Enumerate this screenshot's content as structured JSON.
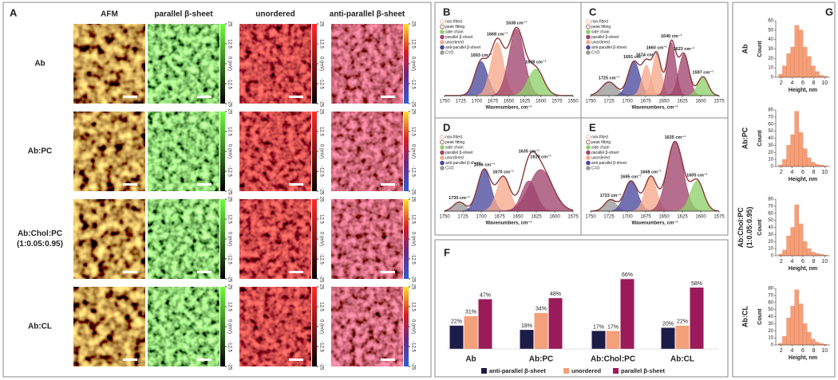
{
  "panel_a": {
    "label": "A",
    "columns": [
      "AFM",
      "parallel β-sheet",
      "unordered",
      "anti-parallel β-sheet"
    ],
    "rows": [
      [
        "Ab"
      ],
      [
        "Ab:PC"
      ],
      [
        "Ab:Chol:PC",
        "(1:0.05:0.95)"
      ],
      [
        "Ab:CL"
      ]
    ],
    "colorbar": {
      "lim": [
        -25,
        25
      ],
      "ticks": [
        25,
        12.5,
        {
          "value": 0,
          "label": "0 (mV)"
        },
        -12.5,
        -25
      ]
    }
  },
  "spectrum_legend": [
    {
      "label": "non-fitted",
      "color": "#f4a582"
    },
    {
      "label": "peak fitting",
      "color": "#8b3a3a"
    },
    {
      "label": "side chain",
      "color": "#8fd16a"
    },
    {
      "label": "parallel β-sheet",
      "color": "#a0456e"
    },
    {
      "label": "unordered",
      "color": "#f6a98a"
    },
    {
      "label": "anti-parallel β-sheet",
      "color": "#4a4a9e"
    },
    {
      "label": "C=O",
      "color": "#9a9a9a"
    }
  ],
  "spectrum_xlabel": "Wavenumbers, cm⁻¹",
  "chart_data": [
    {
      "type": "spectrum",
      "panel_label": "B",
      "xlim": [
        1750,
        1550
      ],
      "xticks": [
        1750,
        1725,
        1700,
        1675,
        1650,
        1625,
        1600,
        1575,
        1550
      ],
      "ylim": [
        0,
        100
      ],
      "peaks": [
        {
          "x": 1693,
          "height": 45,
          "width": 10,
          "color": "#4a4a9e",
          "label": "1693 cm⁻¹"
        },
        {
          "x": 1668,
          "height": 70,
          "width": 10,
          "color": "#f6a98a",
          "label": "1668 cm⁻¹"
        },
        {
          "x": 1638,
          "height": 88,
          "width": 12,
          "color": "#a0456e",
          "label": "1638 cm⁻¹"
        },
        {
          "x": 1608,
          "height": 35,
          "width": 12,
          "color": "#8fd16a",
          "label": "1608 cm⁻¹"
        }
      ]
    },
    {
      "type": "spectrum",
      "panel_label": "C",
      "xlim": [
        1750,
        1575
      ],
      "xticks": [
        1750,
        1725,
        1700,
        1675,
        1650,
        1625,
        1600,
        1575
      ],
      "ylim": [
        0,
        100
      ],
      "peaks": [
        {
          "x": 1725,
          "height": 18,
          "width": 10,
          "color": "#9a9a9a",
          "label": "1725 cm⁻¹"
        },
        {
          "x": 1691,
          "height": 45,
          "width": 8,
          "color": "#4a4a9e",
          "label": "1691 cm⁻¹"
        },
        {
          "x": 1674,
          "height": 40,
          "width": 6,
          "color": "#f6a98a",
          "label": "1674 cm⁻¹"
        },
        {
          "x": 1660,
          "height": 55,
          "width": 6,
          "color": "#f6a98a",
          "label": "1660 cm⁻¹"
        },
        {
          "x": 1640,
          "height": 70,
          "width": 6,
          "color": "#a0456e",
          "label": "1640 cm⁻¹"
        },
        {
          "x": 1623,
          "height": 55,
          "width": 7,
          "color": "#a0456e",
          "label": "1623 cm⁻¹"
        },
        {
          "x": 1597,
          "height": 25,
          "width": 7,
          "color": "#8fd16a",
          "label": "1597 cm⁻¹"
        }
      ]
    },
    {
      "type": "spectrum",
      "panel_label": "D",
      "xlim": [
        1750,
        1575
      ],
      "xticks": [
        1750,
        1725,
        1700,
        1675,
        1650,
        1625,
        1600,
        1575
      ],
      "ylim": [
        0,
        100
      ],
      "peaks": [
        {
          "x": 1730,
          "height": 12,
          "width": 8,
          "color": "#9a9a9a",
          "label": "1730 cm⁻¹"
        },
        {
          "x": 1696,
          "height": 55,
          "width": 9,
          "color": "#4a4a9e",
          "label": "1696 cm⁻¹"
        },
        {
          "x": 1670,
          "height": 45,
          "width": 9,
          "color": "#f6a98a",
          "label": "1670 cm⁻¹"
        },
        {
          "x": 1635,
          "height": 40,
          "width": 10,
          "color": "#a0456e",
          "label": "1635 cm⁻¹"
        },
        {
          "x": 1619,
          "height": 55,
          "width": 16,
          "color": "#a0456e",
          "label": "1619 cm⁻¹"
        }
      ]
    },
    {
      "type": "spectrum",
      "panel_label": "E",
      "xlim": [
        1750,
        1575
      ],
      "xticks": [
        1750,
        1725,
        1700,
        1675,
        1650,
        1625,
        1600,
        1575
      ],
      "ylim": [
        0,
        100
      ],
      "peaks": [
        {
          "x": 1723,
          "height": 15,
          "width": 8,
          "color": "#9a9a9a",
          "label": "1723 cm⁻¹"
        },
        {
          "x": 1695,
          "height": 40,
          "width": 9,
          "color": "#4a4a9e",
          "label": "1695 cm⁻¹"
        },
        {
          "x": 1668,
          "height": 45,
          "width": 8,
          "color": "#f6a98a",
          "label": "1668 cm⁻¹"
        },
        {
          "x": 1635,
          "height": 92,
          "width": 11,
          "color": "#a0456e",
          "label": "1635 cm⁻¹"
        },
        {
          "x": 1605,
          "height": 40,
          "width": 9,
          "color": "#8fd16a",
          "label": "1605 cm⁻¹"
        }
      ]
    },
    {
      "type": "bar",
      "panel_label": "F",
      "categories": [
        "Ab",
        "Ab:PC",
        "Ab:Chol:PC",
        "Ab:CL"
      ],
      "ylim": [
        0,
        70
      ],
      "series": [
        {
          "name": "anti-parallel β-sheet",
          "color": "#1c1c48",
          "values": [
            22,
            18,
            17,
            20
          ],
          "value_labels": [
            "22%",
            "18%",
            "17%",
            "20%"
          ]
        },
        {
          "name": "unordered",
          "color": "#f4a07a",
          "values": [
            31,
            34,
            17,
            22
          ],
          "value_labels": [
            "31%",
            "34%",
            "17%",
            "22%"
          ]
        },
        {
          "name": "parallel β-sheet",
          "color": "#9b1b5a",
          "values": [
            47,
            48,
            66,
            58
          ],
          "value_labels": [
            "47%",
            "48%",
            "66%",
            "58%"
          ]
        }
      ]
    },
    {
      "type": "histogram",
      "panel_label": "G",
      "row_label": [
        "Ab"
      ],
      "xlabel": "Height, nm",
      "ylabel": "Count",
      "color": "#f4a07a",
      "bins": [
        1.5,
        2.25,
        3,
        3.75,
        4.5,
        5.25,
        6,
        6.75,
        7.5,
        8.25,
        9,
        9.75,
        10.5
      ],
      "values": [
        3,
        12,
        25,
        32,
        55,
        50,
        32,
        22,
        12,
        6,
        2,
        1
      ],
      "xlim": [
        1,
        11
      ],
      "xticks": [
        2,
        4,
        6,
        8,
        10
      ],
      "ylim": [
        0,
        60
      ],
      "yticks": [
        0,
        10,
        20,
        30,
        40,
        50,
        60
      ]
    },
    {
      "type": "histogram",
      "row_label": [
        "Ab:PC"
      ],
      "xlabel": "Height, nm",
      "ylabel": "Count",
      "color": "#f4a07a",
      "bins": [
        1.5,
        2.25,
        3,
        3.75,
        4.5,
        5.25,
        6,
        6.75,
        7.5,
        8.25,
        9,
        9.75,
        10.5
      ],
      "values": [
        2,
        10,
        30,
        45,
        78,
        48,
        25,
        12,
        6,
        3,
        2,
        1
      ],
      "xlim": [
        1,
        11
      ],
      "xticks": [
        2,
        4,
        6,
        8,
        10
      ],
      "ylim": [
        0,
        80
      ],
      "yticks": [
        0,
        10,
        20,
        30,
        40,
        50,
        60,
        70,
        80
      ]
    },
    {
      "type": "histogram",
      "row_label": [
        "Ab:Chol:PC",
        "(1:0.05:0.95)"
      ],
      "xlabel": "Height, nm",
      "ylabel": "Count",
      "color": "#f4a07a",
      "bins": [
        1.5,
        2.25,
        3,
        3.75,
        4.5,
        5.25,
        6,
        6.75,
        7.5,
        8.25,
        9,
        9.75,
        10.5
      ],
      "values": [
        2,
        8,
        28,
        40,
        72,
        45,
        20,
        10,
        5,
        3,
        2,
        1
      ],
      "xlim": [
        1,
        11
      ],
      "xticks": [
        2,
        4,
        6,
        8,
        10
      ],
      "ylim": [
        0,
        80
      ],
      "yticks": [
        0,
        10,
        20,
        30,
        40,
        50,
        60,
        70,
        80
      ]
    },
    {
      "type": "histogram",
      "row_label": [
        "Ab:CL"
      ],
      "xlabel": "Height, nm",
      "ylabel": "Count",
      "color": "#f4a07a",
      "bins": [
        1.5,
        2.25,
        3,
        3.75,
        4.5,
        5.25,
        6,
        6.75,
        7.5,
        8.25,
        9,
        9.75,
        10.5
      ],
      "values": [
        2,
        12,
        38,
        55,
        78,
        58,
        30,
        18,
        8,
        4,
        2,
        1
      ],
      "xlim": [
        1,
        11
      ],
      "xticks": [
        2,
        4,
        6,
        8,
        10
      ],
      "ylim": [
        0,
        80
      ],
      "yticks": [
        0,
        10,
        20,
        30,
        40,
        50,
        60,
        70,
        80
      ]
    }
  ]
}
